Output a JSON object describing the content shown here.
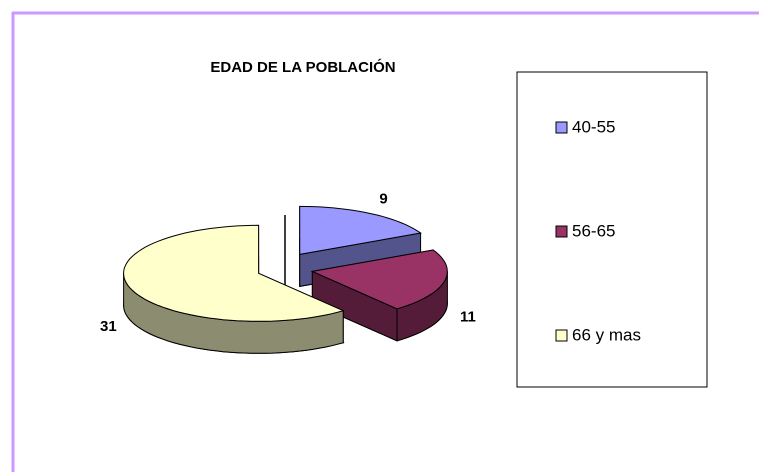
{
  "chart_data": {
    "type": "pie",
    "title": "EDAD DE LA POBLACIÓN",
    "categories": [
      "40-55",
      "56-65",
      "66 y mas"
    ],
    "values": [
      9,
      11,
      31
    ],
    "colors": [
      "#9999ff",
      "#993366",
      "#ffffcc"
    ],
    "legend": "right"
  }
}
